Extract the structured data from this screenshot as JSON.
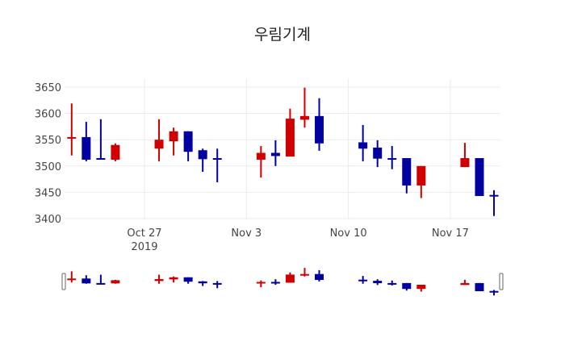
{
  "chart_data": {
    "type": "candlestick",
    "title": "우림기계",
    "xlabel": "",
    "ylabel": "",
    "ylim": [
      3400,
      3650
    ],
    "yticks": [
      3400,
      3450,
      3500,
      3550,
      3600,
      3650
    ],
    "xticks": [
      {
        "date": "2019-10-27",
        "label": "Oct 27",
        "sublabel": "2019"
      },
      {
        "date": "2019-11-03",
        "label": "Nov 3",
        "sublabel": ""
      },
      {
        "date": "2019-11-10",
        "label": "Nov 10",
        "sublabel": ""
      },
      {
        "date": "2019-11-17",
        "label": "Nov 17",
        "sublabel": ""
      }
    ],
    "grid": true,
    "rangeslider": true,
    "increasing_color": "#d00000",
    "decreasing_color": "#0000a0",
    "candles": [
      {
        "date": "2019-10-22",
        "open": 3553,
        "high": 3619,
        "low": 3520,
        "close": 3555
      },
      {
        "date": "2019-10-23",
        "open": 3555,
        "high": 3584,
        "low": 3509,
        "close": 3512
      },
      {
        "date": "2019-10-24",
        "open": 3515,
        "high": 3589,
        "low": 3513,
        "close": 3514
      },
      {
        "date": "2019-10-25",
        "open": 3512,
        "high": 3543,
        "low": 3509,
        "close": 3540
      },
      {
        "date": "2019-10-28",
        "open": 3533,
        "high": 3589,
        "low": 3509,
        "close": 3550
      },
      {
        "date": "2019-10-29",
        "open": 3547,
        "high": 3573,
        "low": 3520,
        "close": 3566
      },
      {
        "date": "2019-10-30",
        "open": 3566,
        "high": 3566,
        "low": 3509,
        "close": 3527
      },
      {
        "date": "2019-10-31",
        "open": 3530,
        "high": 3533,
        "low": 3489,
        "close": 3513
      },
      {
        "date": "2019-11-01",
        "open": 3515,
        "high": 3533,
        "low": 3469,
        "close": 3514
      },
      {
        "date": "2019-11-04",
        "open": 3512,
        "high": 3538,
        "low": 3478,
        "close": 3525
      },
      {
        "date": "2019-11-05",
        "open": 3525,
        "high": 3549,
        "low": 3500,
        "close": 3519
      },
      {
        "date": "2019-11-06",
        "open": 3518,
        "high": 3609,
        "low": 3518,
        "close": 3590
      },
      {
        "date": "2019-11-07",
        "open": 3588,
        "high": 3649,
        "low": 3573,
        "close": 3595
      },
      {
        "date": "2019-11-08",
        "open": 3595,
        "high": 3629,
        "low": 3529,
        "close": 3543
      },
      {
        "date": "2019-11-11",
        "open": 3545,
        "high": 3578,
        "low": 3509,
        "close": 3533
      },
      {
        "date": "2019-11-12",
        "open": 3535,
        "high": 3549,
        "low": 3498,
        "close": 3514
      },
      {
        "date": "2019-11-13",
        "open": 3515,
        "high": 3538,
        "low": 3494,
        "close": 3514
      },
      {
        "date": "2019-11-14",
        "open": 3515,
        "high": 3515,
        "low": 3448,
        "close": 3463
      },
      {
        "date": "2019-11-15",
        "open": 3463,
        "high": 3500,
        "low": 3439,
        "close": 3500
      },
      {
        "date": "2019-11-18",
        "open": 3498,
        "high": 3544,
        "low": 3498,
        "close": 3515
      },
      {
        "date": "2019-11-19",
        "open": 3515,
        "high": 3515,
        "low": 3443,
        "close": 3443
      },
      {
        "date": "2019-11-20",
        "open": 3445,
        "high": 3454,
        "low": 3405,
        "close": 3444
      }
    ]
  }
}
